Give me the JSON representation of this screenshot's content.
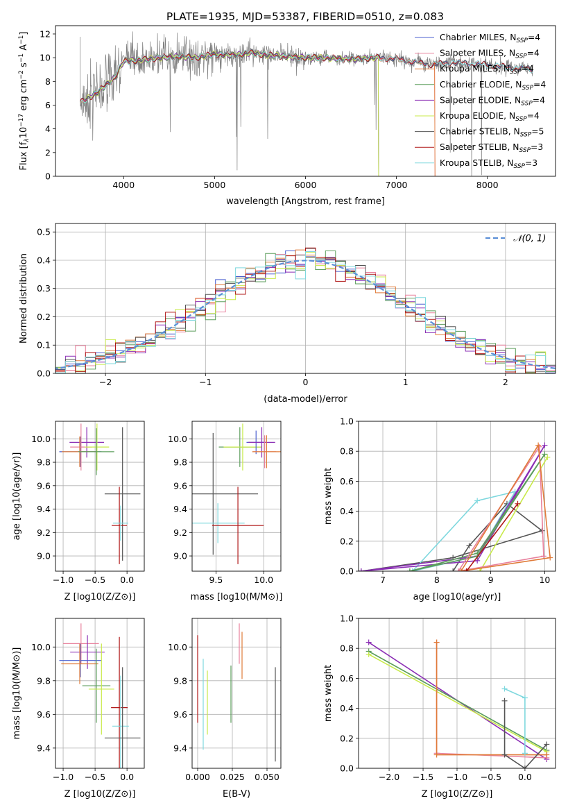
{
  "title": "PLATE=1935, MJD=53387, FIBERID=0510, z=0.083",
  "colors": {
    "chabrier_miles": "#4a5fcf",
    "salpeter_miles": "#e8809c",
    "kroupa_miles": "#e07b39",
    "chabrier_elodie": "#5c9e5c",
    "salpeter_elodie": "#8b2fb5",
    "kroupa_elodie": "#c8ea4a",
    "chabrier_stelib": "#555555",
    "salpeter_stelib": "#b01818",
    "kroupa_stelib": "#7fd8de",
    "normal": "#5b8fd6",
    "data": "#808080"
  },
  "chart_data": [
    {
      "id": "spectrum",
      "type": "line",
      "xlabel": "wavelength [Angstrom, rest frame]",
      "ylabel": "Flux [f_λ 10^-17 erg cm^-2 s^-1 A^-1]",
      "xlim": [
        3250,
        8750
      ],
      "ylim": [
        0,
        12.7
      ],
      "xticks": [
        "4000",
        "5000",
        "6000",
        "7000",
        "8000"
      ],
      "yticks": [
        "0",
        "2",
        "4",
        "6",
        "8",
        "10",
        "12"
      ],
      "legend_position": "right",
      "legend": [
        "Chabrier MILES, N_SSP=4",
        "Salpeter MILES, N_SSP=4",
        "Kroupa MILES, N_SSP=4",
        "Chabrier ELODIE, N_SSP=4",
        "Salpeter ELODIE, N_SSP=4",
        "Kroupa ELODIE, N_SSP=4",
        "Chabrier STELIB, N_SSP=5",
        "Salpeter STELIB, N_SSP=3",
        "Kroupa STELIB, N_SSP=3"
      ],
      "model_continuum": [
        [
          3520,
          6.2
        ],
        [
          3700,
          7.0
        ],
        [
          3900,
          8.3
        ],
        [
          4000,
          9.7
        ],
        [
          4200,
          9.8
        ],
        [
          4400,
          10.0
        ],
        [
          4600,
          10.1
        ],
        [
          4800,
          10.0
        ],
        [
          5000,
          10.3
        ],
        [
          5200,
          10.2
        ],
        [
          5400,
          10.4
        ],
        [
          5600,
          10.2
        ],
        [
          5800,
          10.1
        ],
        [
          6000,
          10.0
        ],
        [
          6200,
          10.0
        ],
        [
          6400,
          9.9
        ],
        [
          6600,
          9.9
        ],
        [
          6800,
          10.0
        ],
        [
          7000,
          9.9
        ],
        [
          7200,
          9.6
        ],
        [
          7400,
          9.4
        ],
        [
          7600,
          9.6
        ],
        [
          7800,
          9.5
        ],
        [
          8000,
          9.4
        ],
        [
          8200,
          9.2
        ],
        [
          8400,
          9.1
        ],
        [
          8500,
          9.0
        ]
      ]
    },
    {
      "id": "residual_hist",
      "type": "histogram",
      "xlabel": "(data-model)/error",
      "ylabel": "Normed distribution",
      "xlim": [
        -2.5,
        2.5
      ],
      "ylim": [
        0,
        0.53
      ],
      "xticks": [
        "−2",
        "−1",
        "0",
        "1",
        "2"
      ],
      "yticks": [
        "0.0",
        "0.1",
        "0.2",
        "0.3",
        "0.4",
        "0.5"
      ],
      "legend": [
        "𝒩(0, 1)"
      ],
      "legend_position": "top-right",
      "bin_width": 0.1
    },
    {
      "id": "age_vs_Z",
      "type": "errorbar",
      "xlabel": "Z [log10(Z/Z⊙)]",
      "ylabel": "age  [log10(age/yr)]",
      "xlim": [
        -1.12,
        0.27
      ],
      "ylim": [
        8.87,
        10.15
      ],
      "xticks": [
        "−1.0",
        "−0.5",
        "0.0"
      ],
      "yticks": [
        "9.0",
        "9.2",
        "9.4",
        "9.6",
        "9.8",
        "10.0"
      ],
      "points": [
        {
          "x": -0.73,
          "y": 9.89,
          "xerr": 0.33,
          "yerr": 0.13,
          "color": "#4a5fcf"
        },
        {
          "x": -0.63,
          "y": 9.97,
          "xerr": 0.27,
          "yerr": 0.13,
          "color": "#8b2fb5"
        },
        {
          "x": -0.72,
          "y": 9.93,
          "xerr": 0.17,
          "yerr": 0.2,
          "color": "#e8809c"
        },
        {
          "x": -0.74,
          "y": 9.89,
          "xerr": 0.28,
          "yerr": 0.13,
          "color": "#e07b39"
        },
        {
          "x": -0.47,
          "y": 9.93,
          "xerr": 0.19,
          "yerr": 0.2,
          "color": "#c8ea4a"
        },
        {
          "x": -0.48,
          "y": 9.89,
          "xerr": 0.28,
          "yerr": 0.2,
          "color": "#5c9e5c"
        },
        {
          "x": -0.07,
          "y": 9.53,
          "xerr": 0.28,
          "yerr": 0.57,
          "color": "#555555"
        },
        {
          "x": -0.12,
          "y": 9.26,
          "xerr": 0.12,
          "yerr": 0.33,
          "color": "#b01818"
        },
        {
          "x": -0.1,
          "y": 9.28,
          "xerr": 0.12,
          "yerr": 0.15,
          "color": "#7fd8de"
        }
      ]
    },
    {
      "id": "age_vs_mass",
      "type": "errorbar",
      "xlabel": "mass [log10(M/M⊙)]",
      "ylabel": "",
      "xlim": [
        9.25,
        10.18
      ],
      "ylim": [
        8.87,
        10.15
      ],
      "xticks": [
        "9.5",
        "10.0"
      ],
      "yticks": [
        "9.0",
        "9.2",
        "9.4",
        "9.6",
        "9.8",
        "10.0"
      ],
      "points": [
        {
          "x": 9.47,
          "y": 9.53,
          "xerr": 0.47,
          "yerr": 0.52,
          "color": "#555555"
        },
        {
          "x": 9.52,
          "y": 9.28,
          "xerr": 0.28,
          "yerr": 0.17,
          "color": "#7fd8de"
        },
        {
          "x": 9.73,
          "y": 9.26,
          "xerr": 0.27,
          "yerr": 0.33,
          "color": "#b01818"
        },
        {
          "x": 9.75,
          "y": 9.93,
          "xerr": 0.22,
          "yerr": 0.17,
          "color": "#5c9e5c"
        },
        {
          "x": 9.78,
          "y": 9.93,
          "xerr": 0.2,
          "yerr": 0.2,
          "color": "#c8ea4a"
        },
        {
          "x": 9.92,
          "y": 9.97,
          "xerr": 0.1,
          "yerr": 0.1,
          "color": "#4a5fcf"
        },
        {
          "x": 9.98,
          "y": 9.97,
          "xerr": 0.14,
          "yerr": 0.13,
          "color": "#8b2fb5"
        },
        {
          "x": 10.01,
          "y": 9.89,
          "xerr": 0.12,
          "yerr": 0.14,
          "color": "#e8809c"
        },
        {
          "x": 10.03,
          "y": 9.89,
          "xerr": 0.15,
          "yerr": 0.14,
          "color": "#e07b39"
        }
      ]
    },
    {
      "id": "weight_vs_age",
      "type": "line",
      "xlabel": "age  [log10(age/yr)]",
      "ylabel": "mass weight",
      "xlim": [
        6.55,
        10.2
      ],
      "ylim": [
        0,
        1.0
      ],
      "xticks": [
        "7",
        "8",
        "9",
        "10"
      ],
      "yticks": [
        "0.0",
        "0.2",
        "0.4",
        "0.6",
        "0.8",
        "1.0"
      ],
      "series": [
        {
          "color": "#555555",
          "points": [
            [
              8.3,
              0.0
            ],
            [
              8.6,
              0.17
            ],
            [
              9.3,
              0.45
            ],
            [
              9.95,
              0.27
            ],
            [
              8.3,
              0.09
            ],
            [
              6.6,
              0.0
            ]
          ]
        },
        {
          "color": "#7fd8de",
          "points": [
            [
              7.55,
              0.0
            ],
            [
              8.75,
              0.47
            ],
            [
              9.45,
              0.53
            ],
            [
              8.75,
              0.1
            ],
            [
              7.55,
              0.0
            ]
          ]
        },
        {
          "color": "#8b2fb5",
          "points": [
            [
              6.6,
              0.0
            ],
            [
              8.75,
              0.07
            ],
            [
              10.0,
              0.84
            ],
            [
              8.75,
              0.1
            ],
            [
              6.6,
              0.0
            ]
          ]
        },
        {
          "color": "#5c9e5c",
          "points": [
            [
              7.5,
              0.0
            ],
            [
              8.75,
              0.12
            ],
            [
              10.0,
              0.78
            ],
            [
              8.75,
              0.1
            ],
            [
              7.5,
              0.0
            ]
          ]
        },
        {
          "color": "#c8ea4a",
          "points": [
            [
              8.8,
              0.0
            ],
            [
              10.05,
              0.76
            ],
            [
              8.8,
              0.0
            ]
          ]
        },
        {
          "color": "#e8809c",
          "points": [
            [
              8.4,
              0.0
            ],
            [
              9.9,
              0.83
            ],
            [
              9.98,
              0.1
            ],
            [
              8.4,
              0.0
            ]
          ]
        },
        {
          "color": "#e07b39",
          "points": [
            [
              8.45,
              0.0
            ],
            [
              9.88,
              0.84
            ],
            [
              10.1,
              0.09
            ],
            [
              8.45,
              0.0
            ]
          ]
        },
        {
          "color": "#b01818",
          "points": [
            [
              8.55,
              0.0
            ],
            [
              9.5,
              0.45
            ],
            [
              8.55,
              0.0
            ]
          ]
        }
      ]
    },
    {
      "id": "mass_vs_Z",
      "type": "errorbar",
      "xlabel": "Z [log10(Z/Z⊙)]",
      "ylabel": "mass [log10(M/M⊙)]",
      "xlim": [
        -1.12,
        0.27
      ],
      "ylim": [
        9.28,
        10.17
      ],
      "xticks": [
        "−1.0",
        "−0.5",
        "0.0"
      ],
      "yticks": [
        "9.4",
        "9.6",
        "9.8",
        "10.0"
      ],
      "points": [
        {
          "x": -0.72,
          "y": 10.02,
          "xerr": 0.28,
          "yerr": 0.12,
          "color": "#e8809c"
        },
        {
          "x": -0.62,
          "y": 9.97,
          "xerr": 0.27,
          "yerr": 0.1,
          "color": "#8b2fb5"
        },
        {
          "x": -0.73,
          "y": 9.92,
          "xerr": 0.33,
          "yerr": 0.1,
          "color": "#4a5fcf"
        },
        {
          "x": -0.74,
          "y": 9.9,
          "xerr": 0.29,
          "yerr": 0.12,
          "color": "#e07b39"
        },
        {
          "x": -0.48,
          "y": 9.77,
          "xerr": 0.22,
          "yerr": 0.22,
          "color": "#5c9e5c"
        },
        {
          "x": -0.4,
          "y": 9.75,
          "xerr": 0.2,
          "yerr": 0.27,
          "color": "#c8ea4a"
        },
        {
          "x": -0.12,
          "y": 9.64,
          "xerr": 0.13,
          "yerr": 0.42,
          "color": "#b01818"
        },
        {
          "x": -0.1,
          "y": 9.53,
          "xerr": 0.13,
          "yerr": 0.3,
          "color": "#7fd8de"
        },
        {
          "x": -0.07,
          "y": 9.46,
          "xerr": 0.28,
          "yerr": 0.42,
          "color": "#555555"
        }
      ]
    },
    {
      "id": "mass_vs_ebv",
      "type": "errorbar",
      "xlabel": "E(B-V)",
      "ylabel": "",
      "xlim": [
        -0.004,
        0.06
      ],
      "ylim": [
        9.28,
        10.17
      ],
      "xticks": [
        "0.000",
        "0.025",
        "0.050"
      ],
      "yticks": [
        "9.4",
        "9.6",
        "9.8",
        "10.0"
      ],
      "points": [
        {
          "x": 0.0,
          "y": 9.81,
          "xerr": 0,
          "yerr": 0.26,
          "color": "#b01818"
        },
        {
          "x": 0.004,
          "y": 9.66,
          "xerr": 0,
          "yerr": 0.27,
          "color": "#7fd8de"
        },
        {
          "x": 0.007,
          "y": 9.67,
          "xerr": 0,
          "yerr": 0.19,
          "color": "#c8ea4a"
        },
        {
          "x": 0.024,
          "y": 9.72,
          "xerr": 0,
          "yerr": 0.17,
          "color": "#5c9e5c"
        },
        {
          "x": 0.03,
          "y": 10.02,
          "xerr": 0,
          "yerr": 0.12,
          "color": "#e8809c"
        },
        {
          "x": 0.032,
          "y": 9.95,
          "xerr": 0,
          "yerr": 0.14,
          "color": "#e07b39"
        },
        {
          "x": 0.056,
          "y": 9.6,
          "xerr": 0,
          "yerr": 0.28,
          "color": "#555555"
        }
      ]
    },
    {
      "id": "weight_vs_Z",
      "type": "line",
      "xlabel": "Z [log10(Z/Z⊙)]",
      "ylabel": "mass weight",
      "xlim": [
        -2.45,
        0.45
      ],
      "ylim": [
        0,
        1.0
      ],
      "xticks": [
        "−2.0",
        "−1.5",
        "−1.0",
        "−0.5",
        "0.0"
      ],
      "yticks": [
        "0.0",
        "0.2",
        "0.4",
        "0.6",
        "0.8",
        "1.0"
      ],
      "series": [
        {
          "color": "#8b2fb5",
          "points": [
            [
              -2.3,
              0.84
            ],
            [
              0.32,
              0.06
            ],
            [
              0.32,
              0.12
            ]
          ]
        },
        {
          "color": "#5c9e5c",
          "points": [
            [
              -2.3,
              0.78
            ],
            [
              0.32,
              0.12
            ]
          ]
        },
        {
          "color": "#c8ea4a",
          "points": [
            [
              -2.3,
              0.76
            ],
            [
              0.32,
              0.11
            ]
          ]
        },
        {
          "color": "#e8809c",
          "points": [
            [
              -1.3,
              0.84
            ],
            [
              -1.3,
              0.1
            ],
            [
              0.32,
              0.07
            ]
          ]
        },
        {
          "color": "#e07b39",
          "points": [
            [
              -1.3,
              0.84
            ],
            [
              -1.3,
              0.09
            ],
            [
              0.32,
              0.09
            ]
          ]
        },
        {
          "color": "#555555",
          "points": [
            [
              -0.3,
              0.45
            ],
            [
              -0.3,
              0.09
            ],
            [
              0.0,
              0.0
            ],
            [
              0.32,
              0.16
            ]
          ]
        },
        {
          "color": "#7fd8de",
          "points": [
            [
              -0.3,
              0.53
            ],
            [
              0.0,
              0.47
            ],
            [
              0.0,
              0.1
            ]
          ]
        }
      ]
    }
  ]
}
